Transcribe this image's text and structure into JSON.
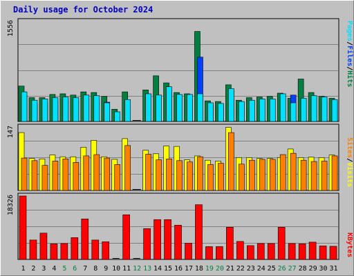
{
  "title": "Daily usage for October 2024",
  "colors": {
    "background": "#c0c0c0",
    "title": "#0000c0",
    "hits": "#008040",
    "files": "#0040ff",
    "pages": "#00e0ff",
    "visits": "#ffff00",
    "sites": "#ff8000",
    "kbytes": "#ff0000",
    "weekend_label": "#008040",
    "weekday_label": "#000000",
    "gridline": "#808080"
  },
  "chart_data": [
    {
      "type": "bar",
      "panel": "top",
      "categories": [
        "1",
        "2",
        "3",
        "4",
        "5",
        "6",
        "7",
        "8",
        "9",
        "10",
        "11",
        "12",
        "13",
        "14",
        "15",
        "16",
        "17",
        "18",
        "19",
        "20",
        "21",
        "22",
        "23",
        "24",
        "25",
        "26",
        "27",
        "28",
        "29",
        "30",
        "31"
      ],
      "weekend": [
        "5",
        "6",
        "12",
        "13",
        "19",
        "20",
        "26",
        "27"
      ],
      "ylim": [
        0,
        1556
      ],
      "ytick_label": "1556",
      "grid": true,
      "series": [
        {
          "name": "Hits",
          "values": [
            550,
            370,
            370,
            420,
            430,
            410,
            460,
            450,
            390,
            190,
            460,
            0,
            490,
            710,
            600,
            450,
            430,
            1400,
            320,
            310,
            570,
            330,
            370,
            380,
            390,
            440,
            360,
            660,
            450,
            390,
            360
          ]
        },
        {
          "name": "Files",
          "values": [
            400,
            280,
            300,
            320,
            330,
            320,
            360,
            330,
            300,
            120,
            330,
            0,
            400,
            390,
            450,
            380,
            340,
            1000,
            260,
            260,
            480,
            280,
            300,
            310,
            320,
            340,
            410,
            340,
            350,
            320,
            310
          ]
        },
        {
          "name": "Pages",
          "values": [
            460,
            330,
            350,
            370,
            380,
            370,
            410,
            400,
            290,
            150,
            340,
            0,
            430,
            410,
            540,
            420,
            420,
            430,
            290,
            280,
            510,
            310,
            330,
            350,
            350,
            430,
            290,
            360,
            400,
            380,
            340
          ]
        }
      ],
      "legend": [
        "Pages",
        "Files",
        "Hits"
      ]
    },
    {
      "type": "bar",
      "panel": "middle",
      "categories": [
        "1",
        "2",
        "3",
        "4",
        "5",
        "6",
        "7",
        "8",
        "9",
        "10",
        "11",
        "12",
        "13",
        "14",
        "15",
        "16",
        "17",
        "18",
        "19",
        "20",
        "21",
        "22",
        "23",
        "24",
        "25",
        "26",
        "27",
        "28",
        "29",
        "30",
        "31"
      ],
      "weekend": [
        "5",
        "6",
        "12",
        "13",
        "19",
        "20",
        "26",
        "27"
      ],
      "ylim": [
        0,
        147
      ],
      "ytick_label": "147",
      "grid": true,
      "series": [
        {
          "name": "Visits",
          "values": [
            134,
            74,
            73,
            82,
            78,
            78,
            100,
            116,
            78,
            72,
            120,
            0,
            93,
            85,
            103,
            102,
            71,
            80,
            70,
            68,
            146,
            76,
            76,
            74,
            74,
            76,
            96,
            76,
            77,
            76,
            82
          ]
        },
        {
          "name": "Sites",
          "values": [
            75,
            69,
            58,
            68,
            73,
            65,
            80,
            83,
            75,
            60,
            104,
            0,
            84,
            71,
            73,
            69,
            66,
            78,
            60,
            63,
            134,
            61,
            70,
            72,
            72,
            83,
            86,
            70,
            67,
            68,
            80
          ]
        }
      ],
      "legend": [
        "Sites",
        "Visits"
      ]
    },
    {
      "type": "bar",
      "panel": "bottom",
      "categories": [
        "1",
        "2",
        "3",
        "4",
        "5",
        "6",
        "7",
        "8",
        "9",
        "10",
        "11",
        "12",
        "13",
        "14",
        "15",
        "16",
        "17",
        "18",
        "19",
        "20",
        "21",
        "22",
        "23",
        "24",
        "25",
        "26",
        "27",
        "28",
        "29",
        "30",
        "31"
      ],
      "weekend": [
        "5",
        "6",
        "12",
        "13",
        "19",
        "20",
        "26",
        "27"
      ],
      "ylim": [
        0,
        18326
      ],
      "ytick_label": "18326",
      "grid": true,
      "series": [
        {
          "name": "KBytes",
          "values": [
            18326,
            5600,
            7600,
            4500,
            4600,
            6300,
            11700,
            5600,
            5100,
            0,
            12900,
            0,
            8900,
            11500,
            11500,
            9900,
            4700,
            15800,
            3700,
            3700,
            9300,
            5200,
            4000,
            4600,
            4600,
            9300,
            4600,
            4500,
            5000,
            3900,
            3800
          ]
        }
      ],
      "legend": [
        "KBytes"
      ]
    }
  ]
}
